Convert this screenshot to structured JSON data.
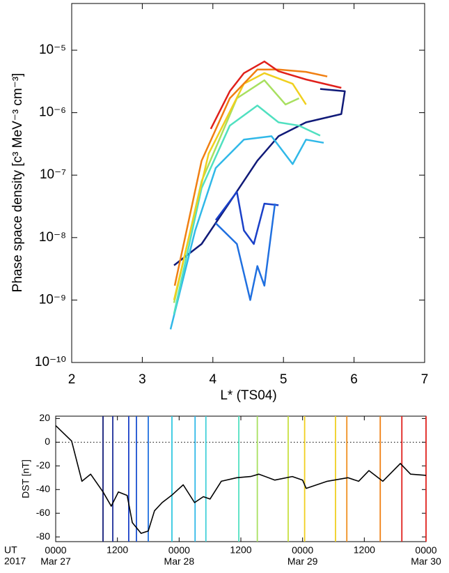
{
  "chart_data": [
    {
      "type": "line",
      "xlabel": "L* (TS04)",
      "ylabel": "Phase space density [c³ MeV⁻³ cm⁻³]",
      "xlim": [
        2,
        7
      ],
      "xticks": [
        2,
        3,
        4,
        5,
        6,
        7
      ],
      "ylim": [
        1e-10,
        5.6e-05
      ],
      "log_y": true,
      "yticks": [
        {
          "value": 1e-10,
          "label": "10⁻¹⁰"
        },
        {
          "value": 1e-09,
          "label": "10⁻⁹"
        },
        {
          "value": 1e-08,
          "label": "10⁻⁸"
        },
        {
          "value": 1e-07,
          "label": "10⁻⁷"
        },
        {
          "value": 1e-06,
          "label": "10⁻⁶"
        },
        {
          "value": 1e-05,
          "label": "10⁻⁵"
        }
      ],
      "series": [
        {
          "color": "#101a78",
          "x": [
            3.45,
            3.84,
            4.24,
            4.63,
            4.93,
            5.32,
            5.82,
            5.87,
            5.52
          ],
          "values": [
            3.6e-09,
            7.9e-09,
            3.7e-08,
            1.7e-07,
            4.2e-07,
            7e-07,
            9.5e-07,
            2.2e-06,
            2.4e-06
          ]
        },
        {
          "color": "#1a40c8",
          "x": [
            4.04,
            4.34,
            4.44,
            4.58,
            4.73,
            4.93
          ],
          "values": [
            1.9e-08,
            5.4e-08,
            1.3e-08,
            7.9e-09,
            3.5e-08,
            3.3e-08
          ]
        },
        {
          "color": "#2070e0",
          "x": [
            4.04,
            4.34,
            4.53,
            4.63,
            4.73,
            4.88
          ],
          "values": [
            1.7e-08,
            7.9e-09,
            1e-09,
            3.5e-09,
            1.7e-09,
            3.5e-08
          ]
        },
        {
          "color": "#30b8e8",
          "x": [
            3.4,
            3.75,
            4.04,
            4.44,
            4.83,
            5.13,
            5.32,
            5.57
          ],
          "values": [
            3.4e-10,
            1.3e-08,
            1.3e-07,
            3.7e-07,
            4.2e-07,
            1.5e-07,
            3.7e-07,
            3.3e-07
          ]
        },
        {
          "color": "#50e0c0",
          "x": [
            3.45,
            3.84,
            4.24,
            4.63,
            4.93,
            5.22,
            5.52
          ],
          "values": [
            6e-10,
            6.2e-08,
            6.2e-07,
            1.3e-06,
            7e-07,
            6.2e-07,
            4.3e-07
          ]
        },
        {
          "color": "#a8e060",
          "x": [
            3.45,
            3.84,
            4.34,
            4.73,
            5.03,
            5.22
          ],
          "values": [
            9e-10,
            8e-08,
            1.7e-06,
            3.3e-06,
            1.35e-06,
            1.7e-06
          ]
        },
        {
          "color": "#f0d020",
          "x": [
            3.45,
            3.94,
            4.44,
            4.73,
            5.13,
            5.32
          ],
          "values": [
            1e-09,
            2.2e-07,
            2.9e-06,
            4.3e-06,
            2.9e-06,
            1.35e-06
          ]
        },
        {
          "color": "#f07f12",
          "x": [
            3.46,
            3.84,
            4.24,
            4.63,
            4.93,
            5.32,
            5.62
          ],
          "values": [
            1.7e-09,
            1.7e-07,
            1.7e-06,
            4.9e-06,
            4.9e-06,
            4.5e-06,
            3.8e-06
          ]
        },
        {
          "color": "#e0201b",
          "x": [
            3.97,
            4.24,
            4.44,
            4.73,
            4.93,
            5.32,
            5.82
          ],
          "values": [
            5.5e-07,
            2.2e-06,
            4.3e-06,
            6.6e-06,
            4.6e-06,
            3.4e-06,
            2.5e-06
          ]
        }
      ]
    },
    {
      "type": "line",
      "ylabel": "DST [nT]",
      "corner_labels": [
        "UT",
        "2017"
      ],
      "color": "#000000",
      "xlim": [
        0,
        72
      ],
      "xticks": [
        {
          "value": 0,
          "label": "0000 Mar 27"
        },
        {
          "value": 12,
          "label": "1200"
        },
        {
          "value": 24,
          "label": "0000 Mar 28"
        },
        {
          "value": 36,
          "label": "1200"
        },
        {
          "value": 48,
          "label": "0000 Mar 29"
        },
        {
          "value": 60,
          "label": "1200"
        },
        {
          "value": 72,
          "label": "0000 Mar 30"
        }
      ],
      "ylim": [
        -84,
        22
      ],
      "yticks": [
        20,
        0,
        -20,
        -40,
        -60,
        -80
      ],
      "zero_line": true,
      "x": [
        0,
        3.1,
        5.1,
        6.8,
        9.2,
        10.8,
        12.2,
        13.9,
        14.9,
        16.6,
        18,
        19.2,
        20.7,
        22.5,
        24.8,
        27,
        28.7,
        30,
        32.2,
        35.2,
        37.9,
        39.5,
        42.6,
        46,
        48,
        48.7,
        52.8,
        56.8,
        58.9,
        60.9,
        63.6,
        67,
        69,
        72
      ],
      "values": [
        14,
        1,
        -33,
        -27,
        -42,
        -54,
        -42,
        -45,
        -68,
        -77,
        -75,
        -58,
        -51,
        -45,
        -36,
        -51,
        -46,
        -48,
        -33,
        -30,
        -29,
        -27,
        -32,
        -29,
        -32,
        -39,
        -33,
        -30,
        -33,
        -24,
        -33,
        -18,
        -27,
        -28
      ],
      "markers": {
        "x": [
          9.2,
          11.1,
          14.2,
          15.7,
          18,
          22.6,
          27.1,
          29.2,
          35.6,
          39.2,
          45.2,
          48.4,
          54.4,
          56.6,
          63.1,
          67.3,
          72
        ],
        "colors": [
          "#101a78",
          "#1a2c98",
          "#1a40c8",
          "#1a50d0",
          "#2070e0",
          "#30c8e0",
          "#30b8e8",
          "#40d0d8",
          "#50e0c0",
          "#a8e060",
          "#c8e040",
          "#f0d020",
          "#f0d020",
          "#f09020",
          "#f07f12",
          "#e0201b",
          "#e0201b"
        ]
      }
    }
  ]
}
